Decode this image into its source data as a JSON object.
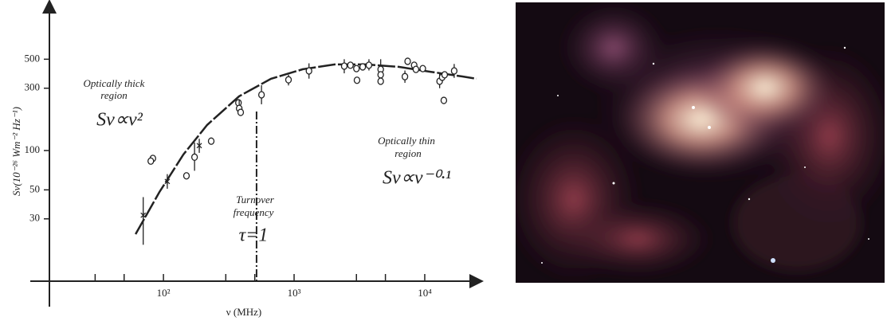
{
  "chart_data": {
    "type": "scatter",
    "y_label": "Sν(10⁻²⁶ Wm⁻² Hz⁻¹)",
    "x_label": "ν (MHz)",
    "annotations": {
      "thick_1": "Optically thick",
      "thick_2": "region",
      "thick_formula": "Sν∝ν²",
      "turnover_1": "Turnover",
      "turnover_2": "frequency",
      "tau": "τ=1",
      "thin_1": "Optically thin",
      "thin_2": "region",
      "thin_formula": "Sν∝ν⁻⁰·¹"
    },
    "log_x": true,
    "log_y": true,
    "xlim": [
      13.4,
      26000
    ],
    "ylim": [
      10,
      1350
    ],
    "xticks": [
      30,
      50,
      {
        "value": 100,
        "label": "10²"
      },
      300,
      500,
      {
        "value": 1000,
        "label": "10³"
      },
      3000,
      5000,
      {
        "value": 10000,
        "label": "10⁴"
      }
    ],
    "yticks": [
      30,
      50,
      100,
      300,
      500
    ],
    "color": "#222",
    "x": [
      70,
      83,
      80,
      107,
      150,
      173,
      188,
      232,
      375,
      380,
      390,
      563,
      906,
      1300,
      2420,
      2700,
      3000,
      3030,
      3350,
      3740,
      4600,
      4600,
      4600,
      7050,
      7400,
      8300,
      8560,
      9660,
      13000,
      13600,
      14200,
      14000,
      16800
    ],
    "values": [
      32,
      87,
      83,
      58,
      64,
      89,
      109,
      118,
      232,
      210,
      196,
      267,
      348,
      407,
      443,
      450,
      424,
      345,
      437,
      450,
      418,
      380,
      339,
      368,
      482,
      450,
      418,
      424,
      339,
      364,
      380,
      242,
      407
    ],
    "err_low": [
      19,
      null,
      null,
      51,
      null,
      70,
      96,
      null,
      null,
      190,
      null,
      226,
      315,
      355,
      390,
      null,
      null,
      null,
      null,
      410,
      380,
      null,
      null,
      330,
      null,
      null,
      null,
      null,
      300,
      null,
      null,
      null,
      360
    ],
    "err_high": [
      44,
      null,
      null,
      66,
      null,
      115,
      123,
      null,
      null,
      245,
      null,
      316,
      380,
      465,
      500,
      null,
      null,
      null,
      null,
      500,
      500,
      null,
      null,
      410,
      null,
      null,
      null,
      null,
      390,
      null,
      null,
      null,
      460
    ],
    "markers": [
      "x",
      "o",
      "o",
      "x",
      "o",
      "o",
      "x",
      "o",
      "o",
      "o",
      "o",
      "o",
      "o",
      "o",
      "o",
      "o",
      "o",
      "o",
      "o",
      "o",
      "o",
      "o",
      "o",
      "o",
      "o",
      "o",
      "o",
      "o",
      "o",
      "o",
      "o",
      "o",
      "o"
    ],
    "fit": {
      "x": [
        61.2,
        93.2,
        142,
        216,
        379,
        665,
        1167,
        2046,
        3580,
        6300,
        11040,
        19400,
        24900
      ],
      "values": [
        22.9,
        48.2,
        93.2,
        157,
        260,
        354,
        419,
        456,
        456,
        437,
        401,
        369,
        354
      ]
    },
    "turnover_x": 516
  }
}
